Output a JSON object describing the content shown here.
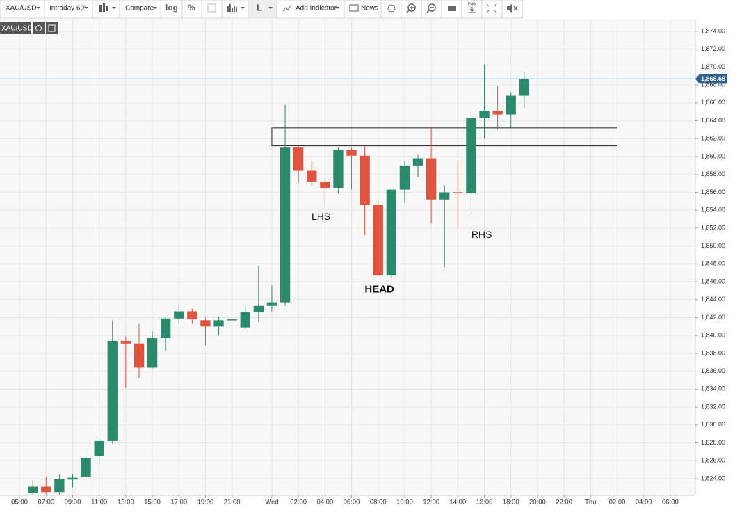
{
  "toolbar": {
    "symbol": "XAU/USD",
    "interval": "Intraday 60'",
    "compare": "Compare",
    "log": "log",
    "percent": "%",
    "line_type": "L",
    "add_indicator": "Add Indicator",
    "news": "News",
    "png": "PNG"
  },
  "chart_data": {
    "type": "candlestick",
    "symbol": "XAU/USD",
    "x": [
      6,
      7,
      8,
      9,
      10,
      11,
      12,
      13,
      14,
      15,
      16,
      17,
      18,
      19,
      20,
      21,
      22,
      23,
      24,
      25,
      26,
      27,
      28,
      29,
      30,
      31,
      32,
      33,
      34,
      35,
      36,
      37,
      38,
      39,
      40,
      41,
      42,
      43
    ],
    "open": [
      1822.4,
      1823.1,
      1822.5,
      1823.9,
      1824.2,
      1826.5,
      1828.2,
      1839.4,
      1839.1,
      1836.4,
      1839.7,
      1841.9,
      1842.7,
      1841.7,
      1841.0,
      1841.7,
      1840.9,
      1842.6,
      1843.3,
      1843.7,
      1861.0,
      1858.4,
      1857.2,
      1856.5,
      1860.7,
      1860.1,
      1854.6,
      1846.7,
      1856.3,
      1859.0,
      1859.8,
      1855.2,
      1856.0,
      1855.9,
      1864.3,
      1865.1,
      1864.7,
      1866.8
    ],
    "high": [
      1823.8,
      1824.2,
      1824.5,
      1824.5,
      1827.4,
      1828.5,
      1841.7,
      1839.9,
      1841.3,
      1840.5,
      1842.0,
      1843.5,
      1843.0,
      1842.0,
      1842.1,
      1841.9,
      1843.2,
      1847.8,
      1845.6,
      1865.8,
      1861.2,
      1859.5,
      1857.4,
      1861.0,
      1861.0,
      1861.3,
      1855.1,
      1856.3,
      1859.5,
      1860.2,
      1863.3,
      1856.8,
      1859.6,
      1864.7,
      1870.3,
      1867.9,
      1867.2,
      1869.5
    ],
    "low": [
      1822.2,
      1822.2,
      1822.2,
      1823.0,
      1823.8,
      1825.6,
      1827.9,
      1834.1,
      1835.2,
      1836.3,
      1838.3,
      1841.3,
      1841.3,
      1838.9,
      1840.0,
      1841.6,
      1840.7,
      1841.5,
      1842.7,
      1843.3,
      1857.1,
      1856.7,
      1854.3,
      1855.9,
      1856.3,
      1851.2,
      1846.6,
      1846.4,
      1854.8,
      1857.7,
      1852.5,
      1847.6,
      1852.0,
      1853.5,
      1862.0,
      1863.0,
      1863.2,
      1865.4
    ],
    "close": [
      1823.1,
      1822.5,
      1824.0,
      1824.1,
      1826.3,
      1828.2,
      1839.4,
      1839.1,
      1836.4,
      1839.7,
      1841.9,
      1842.7,
      1841.8,
      1841.0,
      1841.7,
      1841.8,
      1842.6,
      1843.3,
      1843.7,
      1861.0,
      1858.4,
      1857.2,
      1856.5,
      1860.7,
      1860.1,
      1854.6,
      1846.7,
      1856.3,
      1859.0,
      1859.8,
      1855.2,
      1856.0,
      1855.9,
      1864.3,
      1865.1,
      1864.7,
      1866.8,
      1868.7
    ],
    "up_color": "#2b8a6e",
    "down_color": "#e0533f",
    "grid": true,
    "xlim": [
      3.53,
      55.89
    ],
    "xticks": [
      {
        "value": 5,
        "label": "05:00"
      },
      {
        "value": 7,
        "label": "07:00"
      },
      {
        "value": 9,
        "label": "09:00"
      },
      {
        "value": 11,
        "label": "11:00"
      },
      {
        "value": 13,
        "label": "13:00"
      },
      {
        "value": 15,
        "label": "15:00"
      },
      {
        "value": 17,
        "label": "17:00"
      },
      {
        "value": 19,
        "label": "19:00"
      },
      {
        "value": 21,
        "label": "21:00"
      },
      {
        "value": 24,
        "label": "Wed"
      },
      {
        "value": 26,
        "label": "02:00"
      },
      {
        "value": 28,
        "label": "04:00"
      },
      {
        "value": 30,
        "label": "06:00"
      },
      {
        "value": 32,
        "label": "08:00"
      },
      {
        "value": 34,
        "label": "10:00"
      },
      {
        "value": 36,
        "label": "12:00"
      },
      {
        "value": 38,
        "label": "14:00"
      },
      {
        "value": 40,
        "label": "16:00"
      },
      {
        "value": 42,
        "label": "18:00"
      },
      {
        "value": 44,
        "label": "20:00"
      },
      {
        "value": 46,
        "label": "22:00"
      },
      {
        "value": 48,
        "label": "Thu"
      },
      {
        "value": 50,
        "label": "02:00"
      },
      {
        "value": 52,
        "label": "04:00"
      },
      {
        "value": 54,
        "label": "06:00"
      }
    ],
    "ylim": [
      1822.13,
      1875.32
    ],
    "yticks": [
      {
        "value": 1824,
        "label": "1,824.00"
      },
      {
        "value": 1826,
        "label": "1,826.00"
      },
      {
        "value": 1828,
        "label": "1,828.00"
      },
      {
        "value": 1830,
        "label": "1,830.00"
      },
      {
        "value": 1832,
        "label": "1,832.00"
      },
      {
        "value": 1834,
        "label": "1,834.00"
      },
      {
        "value": 1836,
        "label": "1,836.00"
      },
      {
        "value": 1838,
        "label": "1,838.00"
      },
      {
        "value": 1840,
        "label": "1,840.00"
      },
      {
        "value": 1842,
        "label": "1,842.00"
      },
      {
        "value": 1844,
        "label": "1,844.00"
      },
      {
        "value": 1846,
        "label": "1,846.00"
      },
      {
        "value": 1848,
        "label": "1,848.00"
      },
      {
        "value": 1850,
        "label": "1,850.00"
      },
      {
        "value": 1852,
        "label": "1,852.00"
      },
      {
        "value": 1854,
        "label": "1,854.00"
      },
      {
        "value": 1856,
        "label": "1,856.00"
      },
      {
        "value": 1858,
        "label": "1,858.00"
      },
      {
        "value": 1860,
        "label": "1,860.00"
      },
      {
        "value": 1862,
        "label": "1,862.00"
      },
      {
        "value": 1864,
        "label": "1,864.00"
      },
      {
        "value": 1866,
        "label": "1,866.00"
      },
      {
        "value": 1868,
        "label": "1,868.00"
      },
      {
        "value": 1870,
        "label": "1,870.00"
      },
      {
        "value": 1872,
        "label": "1,872.00"
      },
      {
        "value": 1874,
        "label": "1,874.00"
      }
    ],
    "last_price": {
      "value": 1868.68,
      "label": "1,868.68",
      "color": "#2f5f8f"
    },
    "box": {
      "x": [
        24,
        50
      ],
      "y": [
        1861.2,
        1863.2
      ]
    },
    "annotations": [
      {
        "text": "LHS",
        "x": 27.7,
        "y": 1853.2,
        "bold": false
      },
      {
        "text": "HEAD",
        "x": 32.1,
        "y": 1845.1,
        "bold": true
      },
      {
        "text": "RHS",
        "x": 39.8,
        "y": 1851.2,
        "bold": false
      }
    ]
  }
}
